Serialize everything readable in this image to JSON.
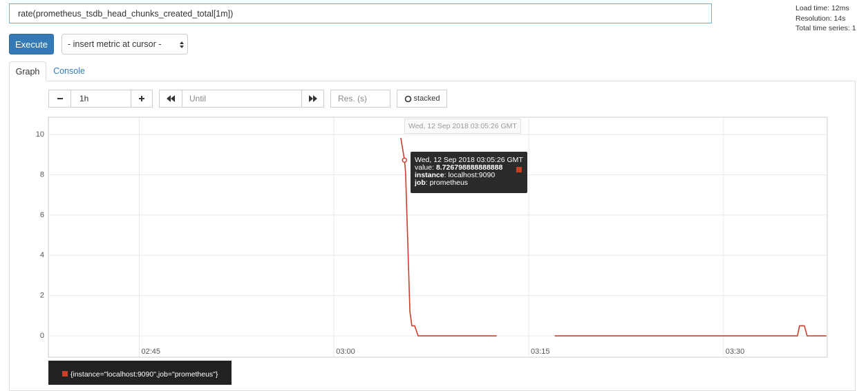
{
  "query": "rate(prometheus_tsdb_head_chunks_created_total[1m])",
  "stats": [
    "Load time: 12ms",
    "Resolution: 14s",
    "Total time series: 1"
  ],
  "buttons": {
    "execute": "Execute",
    "insert_metric": "- insert metric at cursor -"
  },
  "tabs": [
    "Graph",
    "Console"
  ],
  "controls": {
    "range": "1h",
    "until_placeholder": "Until",
    "resolution_placeholder": "Res. (s)",
    "stacked": "stacked"
  },
  "chart_data": {
    "type": "line",
    "x": [
      "03:05:09",
      "03:05:26",
      "03:05:31",
      "03:05:51",
      "03:06:00",
      "03:06:13",
      "03:06:29",
      "03:12:32",
      "03:15:00",
      "03:17:00",
      "03:35:42",
      "03:35:52",
      "03:36:14",
      "03:36:27",
      "03:37:56"
    ],
    "series": [
      {
        "name": "{instance=\"localhost:9090\",job=\"prometheus\"}",
        "color": "#c8402a",
        "values": [
          9.83,
          8.726798888888888,
          8.1,
          1.2,
          0.5,
          0.5,
          0,
          0,
          null,
          0,
          0,
          0.5,
          0.5,
          0,
          0
        ]
      }
    ],
    "xlim": [
      "02:38",
      "03:38"
    ],
    "xticks": [
      "02:45",
      "03:00",
      "03:15",
      "03:30"
    ],
    "ylim": [
      -1.06,
      10.86
    ],
    "yticks": [
      0,
      2,
      4,
      6,
      8,
      10
    ],
    "grid": true,
    "hover": {
      "time": "Wed, 12 Sep 2018 03:05:26 GMT",
      "value_key": "value:",
      "labels": [
        {
          "key": "instance",
          "value": ": localhost:9090"
        },
        {
          "key": "job",
          "value": ": prometheus"
        }
      ]
    }
  }
}
